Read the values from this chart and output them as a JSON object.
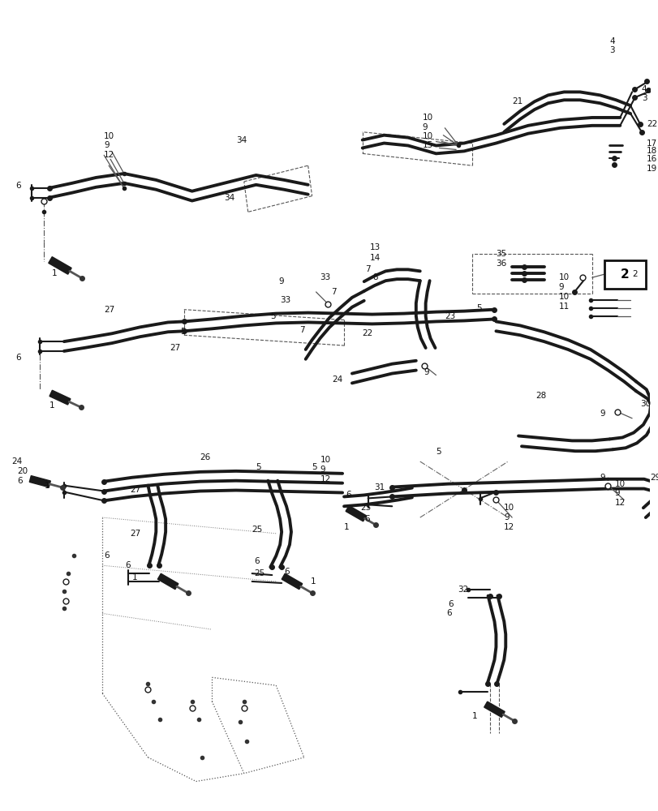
{
  "bg_color": "#ffffff",
  "line_color": "#1a1a1a",
  "lw_thick": 2.8,
  "lw_med": 1.5,
  "lw_thin": 0.9,
  "fig_width": 8.12,
  "fig_height": 10.0,
  "dpi": 100
}
